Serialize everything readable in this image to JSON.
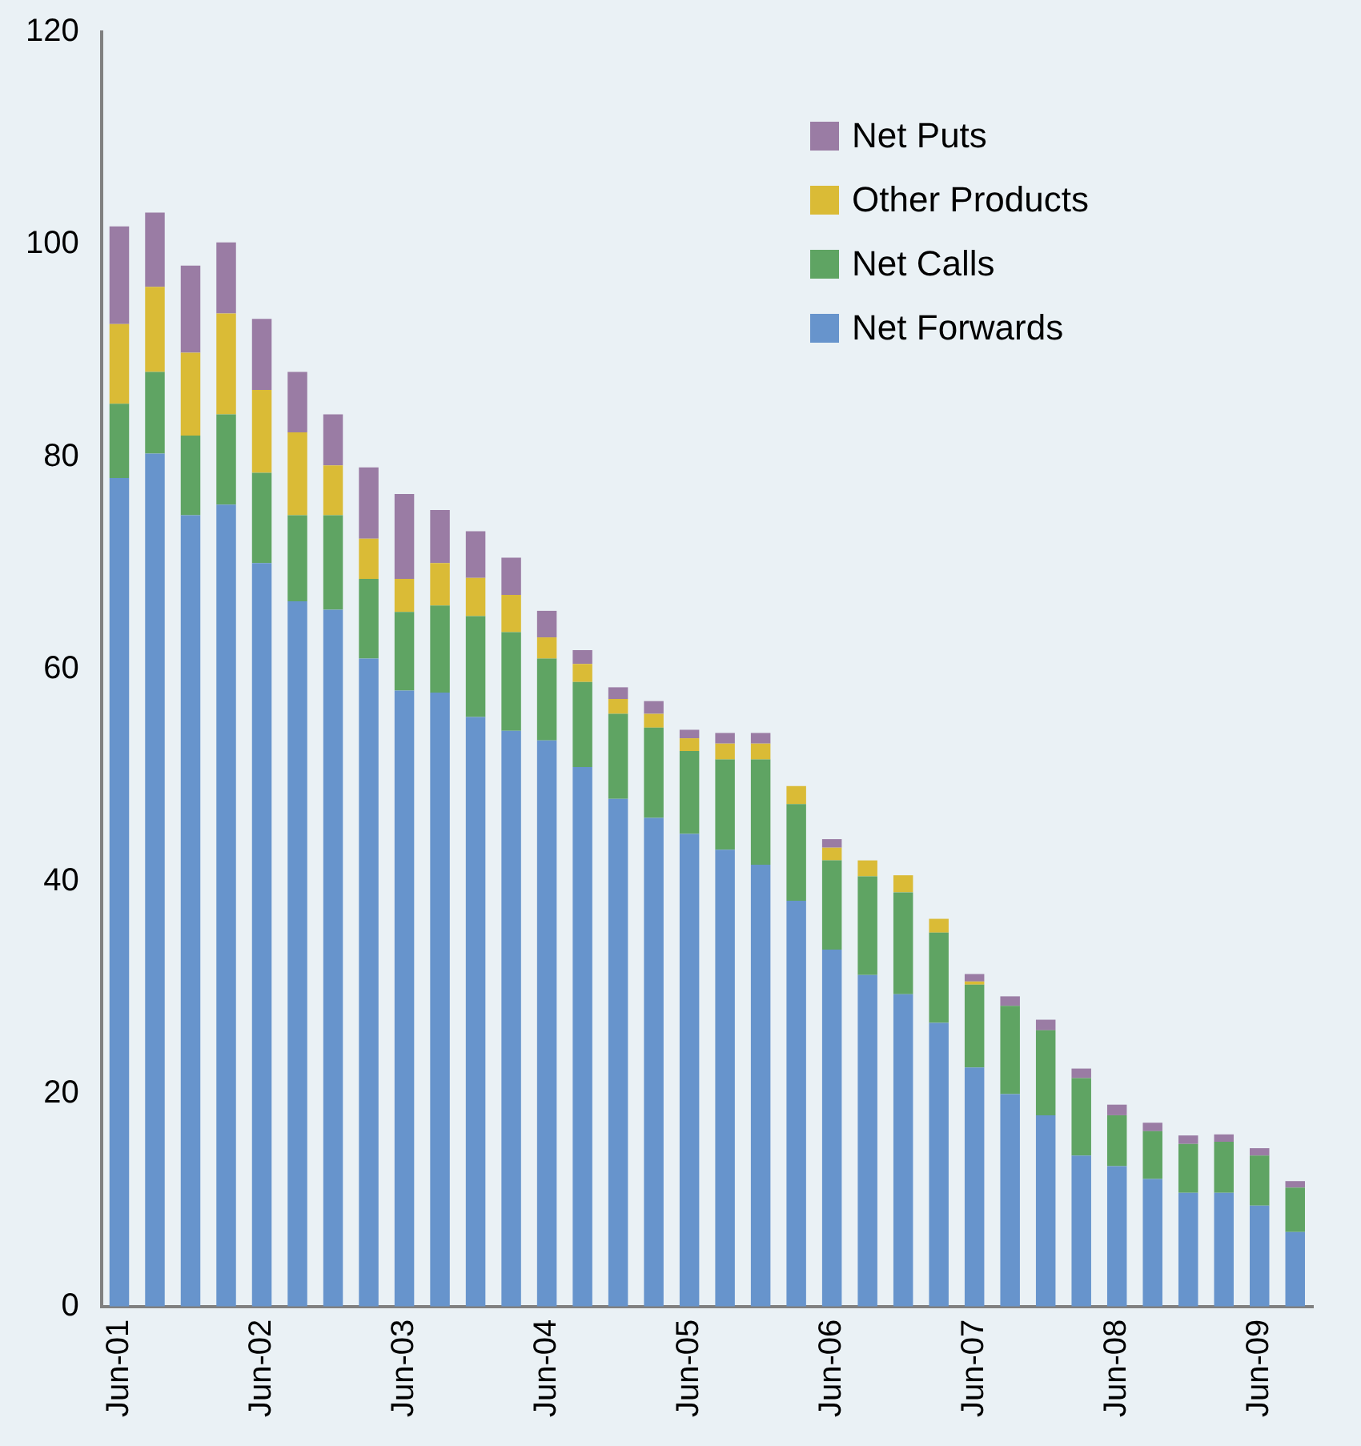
{
  "chart_data": {
    "type": "bar",
    "stacked": true,
    "legend": "top right",
    "categories": [
      "Jun-01",
      null,
      null,
      null,
      "Jun-02",
      null,
      null,
      null,
      "Jun-03",
      null,
      null,
      null,
      "Jun-04",
      null,
      null,
      null,
      "Jun-05",
      null,
      null,
      null,
      "Jun-06",
      null,
      null,
      null,
      "Jun-07",
      null,
      null,
      null,
      "Jun-08",
      null,
      null,
      null,
      "Jun-09",
      null
    ],
    "ylim": [
      0,
      120
    ],
    "yticks": [
      0,
      20,
      40,
      60,
      80,
      100,
      120
    ],
    "grid": false,
    "series": [
      {
        "name": "Net Forwards",
        "color": "#6794cc",
        "values": [
          78,
          80.3,
          74.5,
          75.5,
          70,
          66.4,
          65.6,
          61,
          58,
          57.8,
          55.5,
          54.2,
          53.3,
          50.8,
          47.8,
          46,
          44.5,
          43,
          41.6,
          38.2,
          33.6,
          31.2,
          29.4,
          26.7,
          22.5,
          20,
          18,
          14.2,
          13.2,
          12,
          10.7,
          10.7,
          9.5,
          7
        ]
      },
      {
        "name": "Net Calls",
        "color": "#5fa463",
        "values": [
          7,
          7.7,
          7.5,
          8.5,
          8.5,
          8.1,
          8.9,
          7.5,
          7.4,
          8.2,
          9.5,
          9.3,
          7.7,
          8,
          8,
          8.5,
          7.8,
          8.5,
          9.9,
          9.1,
          8.4,
          9.3,
          9.6,
          8.5,
          7.8,
          8.3,
          8,
          7.3,
          4.8,
          4.5,
          4.6,
          4.8,
          4.7,
          4.2
        ]
      },
      {
        "name": "Other Products",
        "color": "#dabb36",
        "values": [
          7.5,
          8,
          7.8,
          9.5,
          7.8,
          7.8,
          4.7,
          3.8,
          3.1,
          4,
          3.6,
          3.5,
          2,
          1.7,
          1.4,
          1.3,
          1.2,
          1.5,
          1.5,
          1.7,
          1.2,
          1.5,
          1.6,
          1.3,
          0.3,
          0,
          0,
          0,
          0,
          0,
          0,
          0,
          0,
          0
        ]
      },
      {
        "name": "Net Puts",
        "color": "#9a7ca4",
        "values": [
          9.2,
          7,
          8.2,
          6.7,
          6.7,
          5.7,
          4.8,
          6.7,
          8,
          5,
          4.4,
          3.5,
          2.5,
          1.3,
          1.1,
          1.2,
          0.8,
          1,
          1,
          0,
          0.8,
          0,
          0,
          0,
          0.7,
          0.9,
          1,
          0.9,
          1,
          0.8,
          0.8,
          0.7,
          0.7,
          0.6
        ]
      }
    ]
  }
}
